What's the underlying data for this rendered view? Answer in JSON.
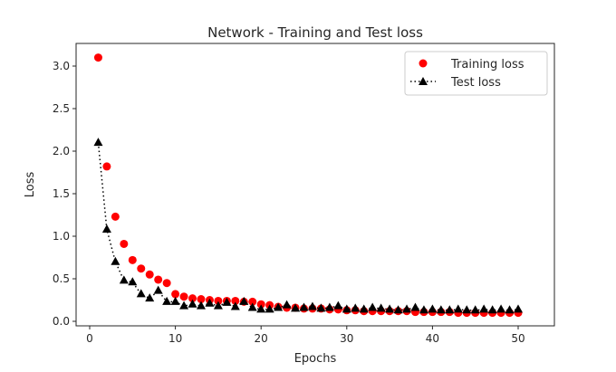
{
  "chart_data": {
    "type": "scatter",
    "title": "Network - Training and Test loss",
    "xlabel": "Epochs",
    "ylabel": "Loss",
    "xlim": [
      -2.5,
      53
    ],
    "ylim": [
      -0.05,
      3.25
    ],
    "xticks": [
      0,
      10,
      20,
      30,
      40,
      50
    ],
    "yticks": [
      0.0,
      0.5,
      1.0,
      1.5,
      2.0,
      2.5,
      3.0
    ],
    "ytick_labels": [
      "0.0",
      "0.5",
      "1.0",
      "1.5",
      "2.0",
      "2.5",
      "3.0"
    ],
    "grid": false,
    "legend_position": "upper right",
    "x": [
      1,
      2,
      3,
      4,
      5,
      6,
      7,
      8,
      9,
      10,
      11,
      12,
      13,
      14,
      15,
      16,
      17,
      18,
      19,
      20,
      21,
      22,
      23,
      24,
      25,
      26,
      27,
      28,
      29,
      30,
      31,
      32,
      33,
      34,
      35,
      36,
      37,
      38,
      39,
      40,
      41,
      42,
      43,
      44,
      45,
      46,
      47,
      48,
      49,
      50
    ],
    "series": [
      {
        "name": "Training loss",
        "style": "markers-only",
        "marker": "circle",
        "color": "#ff0000",
        "values": [
          3.1,
          1.82,
          1.23,
          0.91,
          0.72,
          0.62,
          0.55,
          0.49,
          0.45,
          0.32,
          0.29,
          0.27,
          0.26,
          0.25,
          0.24,
          0.24,
          0.24,
          0.23,
          0.23,
          0.2,
          0.19,
          0.17,
          0.16,
          0.16,
          0.15,
          0.15,
          0.15,
          0.14,
          0.14,
          0.13,
          0.13,
          0.12,
          0.12,
          0.12,
          0.12,
          0.12,
          0.12,
          0.11,
          0.11,
          0.11,
          0.11,
          0.11,
          0.1,
          0.1,
          0.1,
          0.1,
          0.1,
          0.1,
          0.1,
          0.1
        ]
      },
      {
        "name": "Test loss",
        "style": "dotted-line-with-markers",
        "marker": "triangle-up",
        "color": "#000000",
        "values": [
          2.1,
          1.08,
          0.7,
          0.48,
          0.46,
          0.32,
          0.27,
          0.36,
          0.23,
          0.23,
          0.18,
          0.2,
          0.18,
          0.21,
          0.18,
          0.22,
          0.17,
          0.23,
          0.16,
          0.14,
          0.14,
          0.16,
          0.19,
          0.15,
          0.16,
          0.17,
          0.15,
          0.16,
          0.18,
          0.14,
          0.15,
          0.14,
          0.16,
          0.15,
          0.14,
          0.13,
          0.14,
          0.16,
          0.13,
          0.14,
          0.13,
          0.13,
          0.14,
          0.13,
          0.13,
          0.14,
          0.13,
          0.14,
          0.13,
          0.14
        ]
      }
    ]
  }
}
